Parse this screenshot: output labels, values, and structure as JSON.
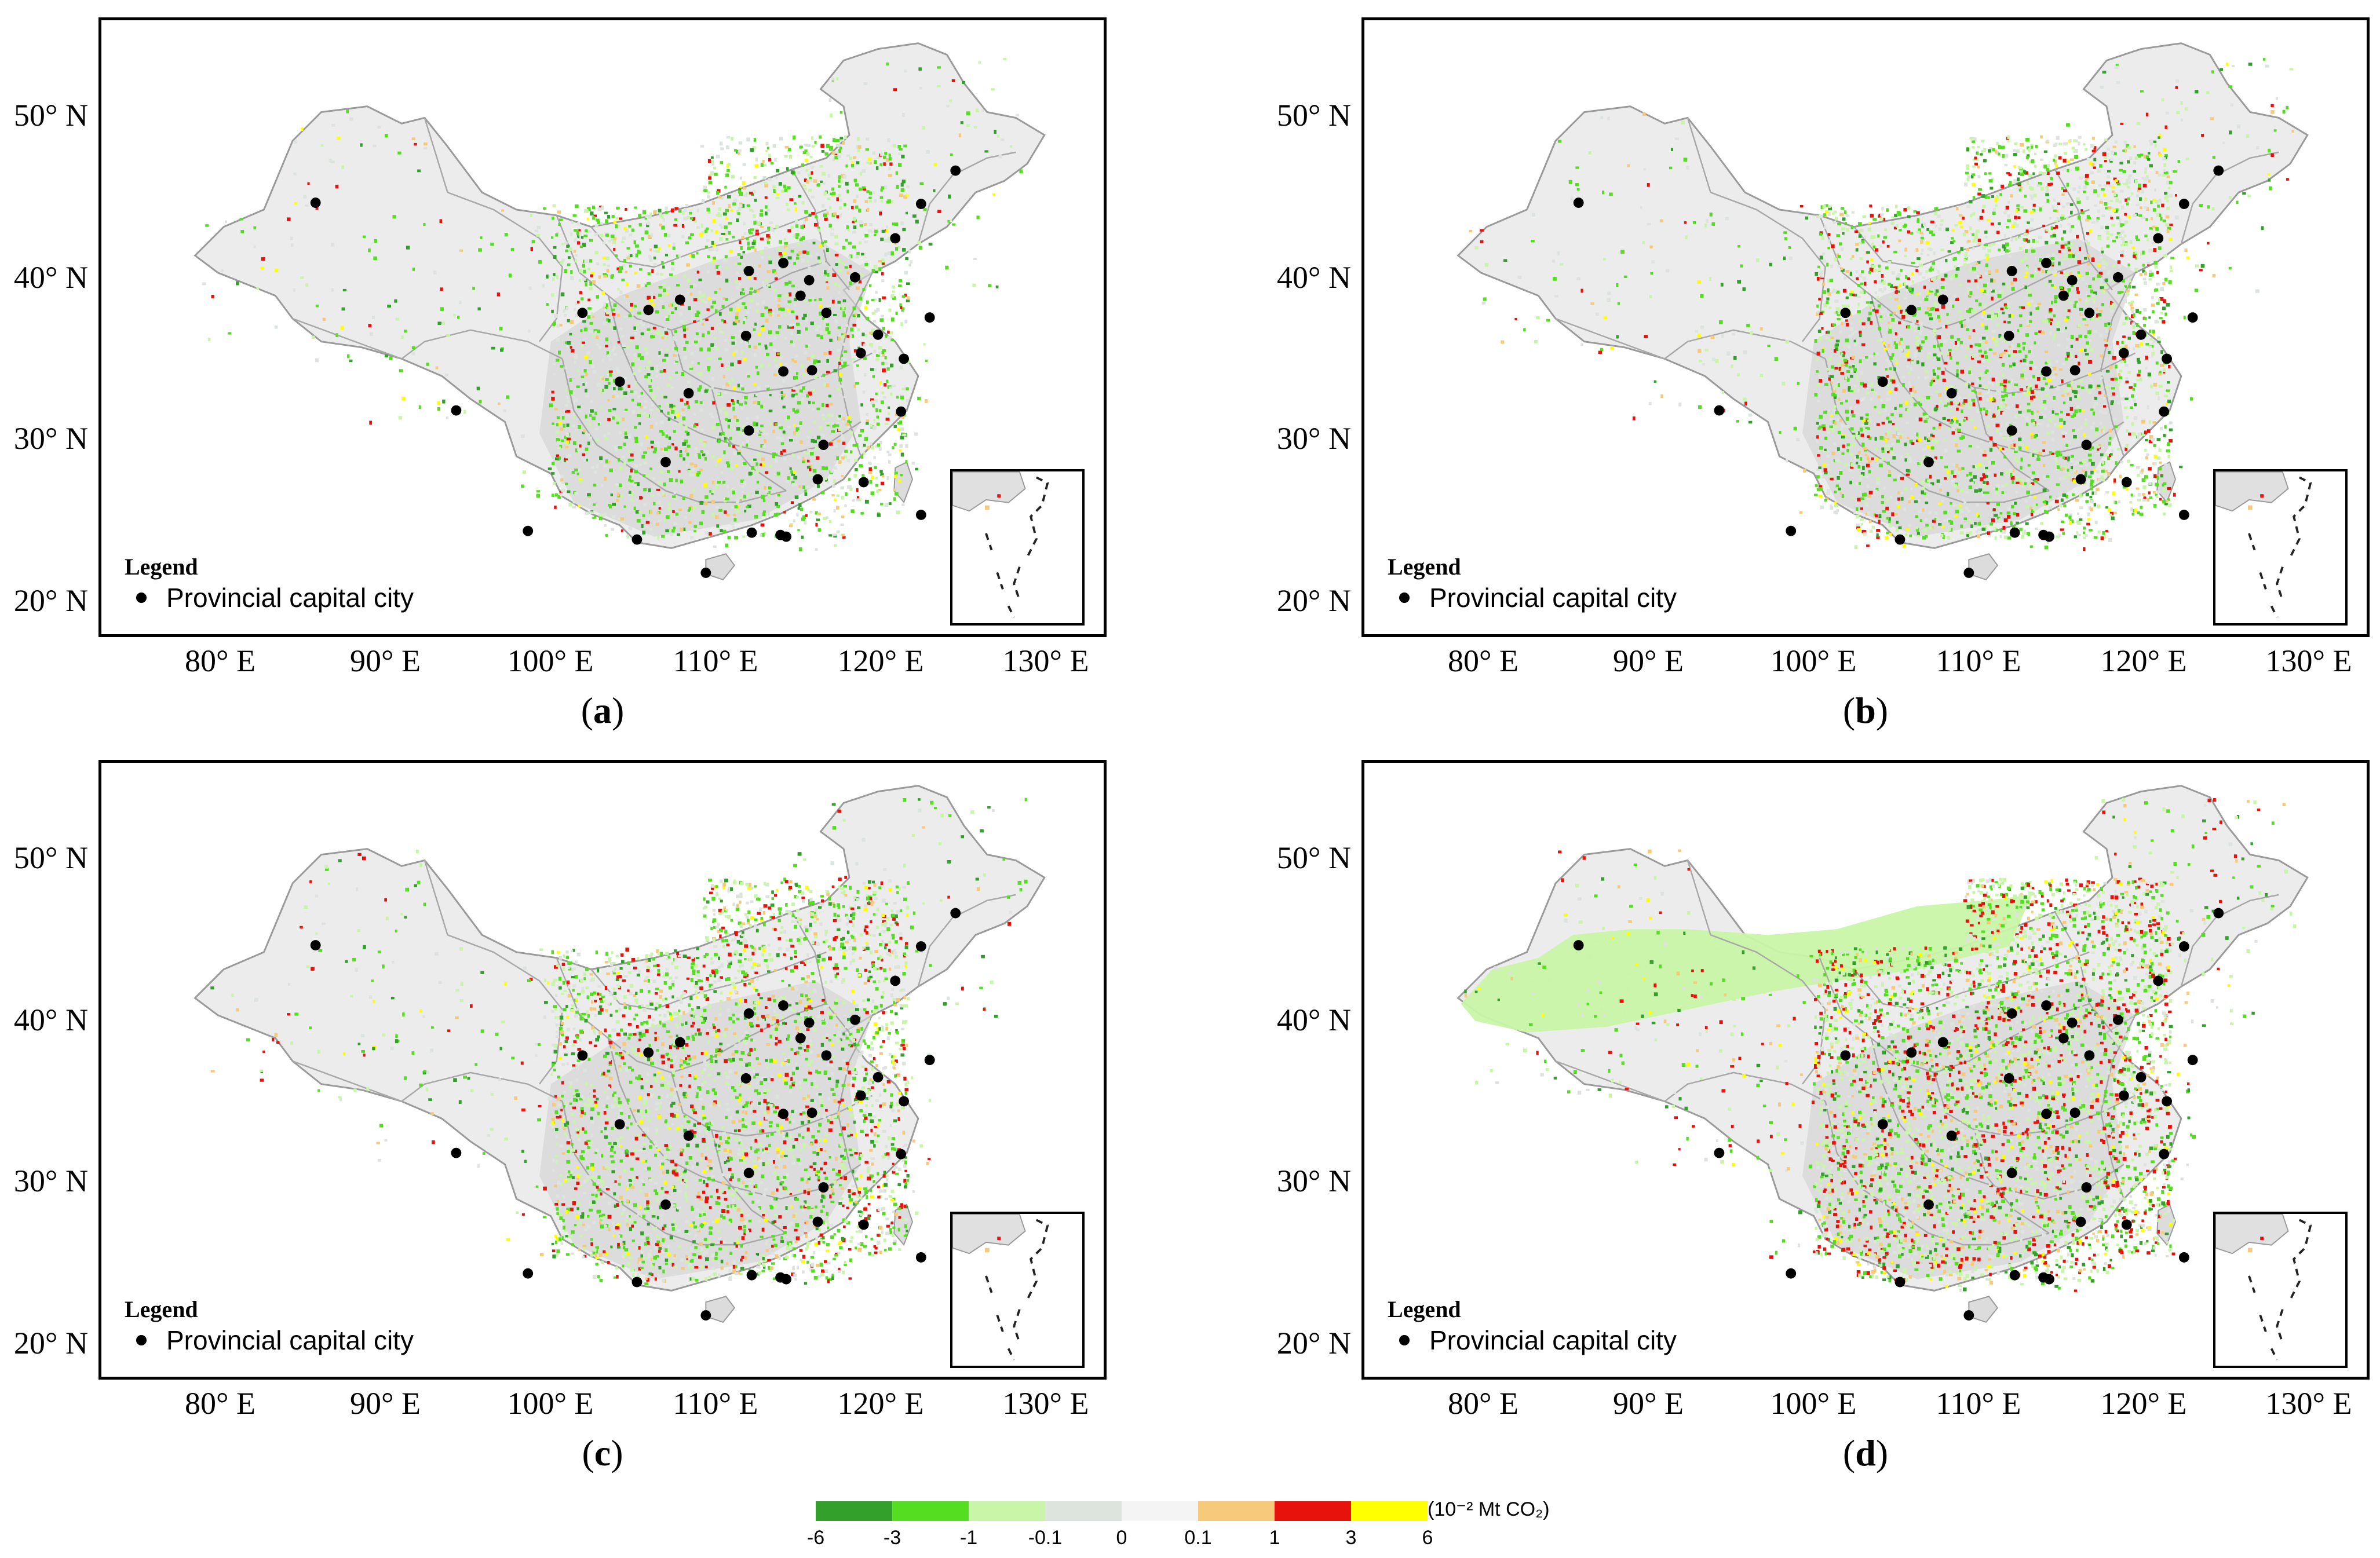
{
  "panels": [
    {
      "label": "a",
      "shade": 0.35
    },
    {
      "label": "b",
      "shade": 0.55
    },
    {
      "label": "c",
      "shade": 0.6
    },
    {
      "label": "d",
      "shade": 0.9
    }
  ],
  "lat_labels": [
    "50° N",
    "40° N",
    "30° N",
    "20° N"
  ],
  "lon_labels": [
    "80° E",
    "90° E",
    "100° E",
    "110° E",
    "120° E",
    "130° E"
  ],
  "legend": {
    "title": "Legend",
    "item": "Provincial capital city"
  },
  "colorbar": {
    "unit": "(10⁻² Mt CO₂)",
    "colors": [
      "#33a02c",
      "#55dd22",
      "#c8f5a8",
      "#dde3dd",
      "#f4f4f4",
      "#f7c97a",
      "#e8120c",
      "#ffff00"
    ],
    "ticks": [
      "-6",
      "-3",
      "-1",
      "-0.1",
      "0",
      "0.1",
      "1",
      "3",
      "6"
    ]
  }
}
